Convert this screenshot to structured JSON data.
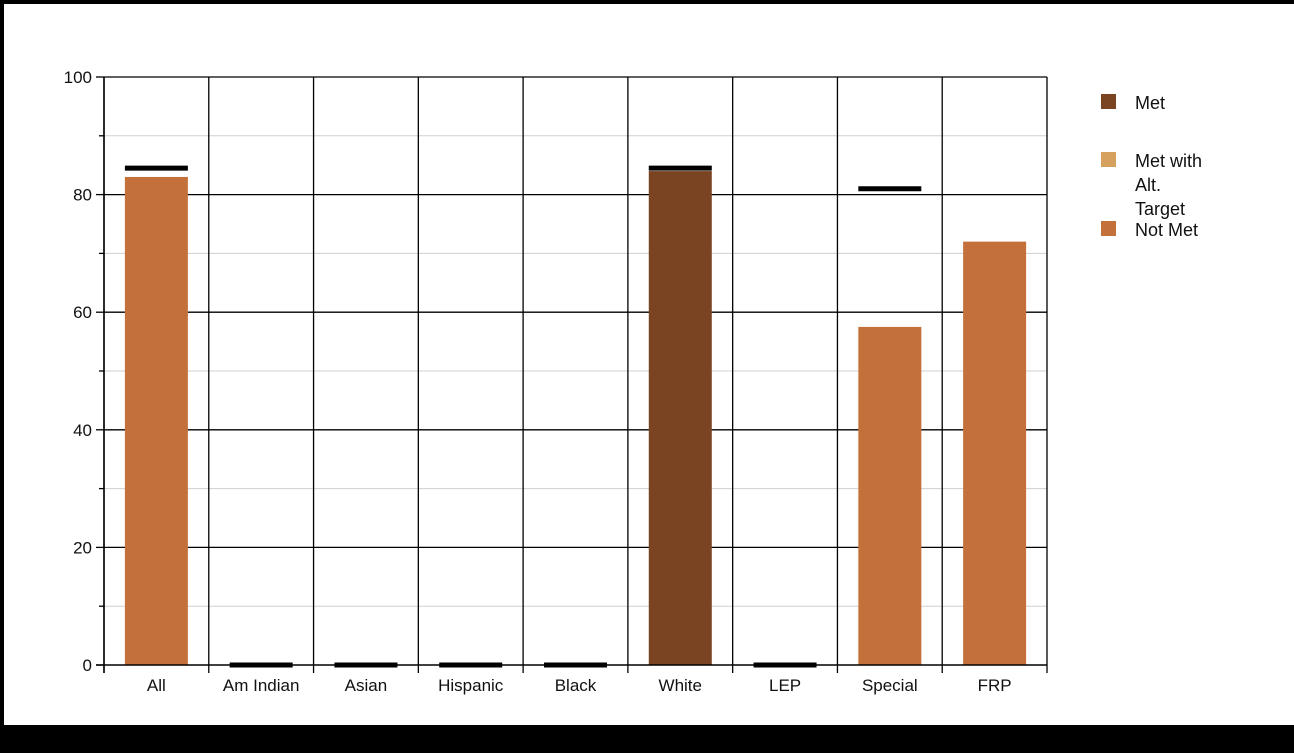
{
  "chart_data": {
    "type": "bar",
    "title": "",
    "xlabel": "",
    "ylabel": "",
    "ylim": [
      0,
      100
    ],
    "yticks": [
      0,
      20,
      40,
      60,
      80,
      100
    ],
    "grid": true,
    "legend_position": "right",
    "categories": [
      "All",
      "Am Indian",
      "Asian",
      "Hispanic",
      "Black",
      "White",
      "LEP",
      "Special",
      "FRP"
    ],
    "values": [
      83,
      0,
      0,
      0,
      0,
      84,
      0,
      57.5,
      72
    ],
    "status": [
      "Not Met",
      null,
      null,
      null,
      null,
      "Met",
      null,
      "Not Met",
      "Not Met"
    ],
    "target_markers": [
      84.5,
      0,
      0,
      0,
      0,
      84.5,
      0,
      81,
      null
    ],
    "legend": [
      {
        "label": "Met",
        "color": "#7a4321"
      },
      {
        "label": "Met with Alt. Target",
        "color": "#d6a15f"
      },
      {
        "label": "Not Met",
        "color": "#c4703a"
      }
    ]
  }
}
